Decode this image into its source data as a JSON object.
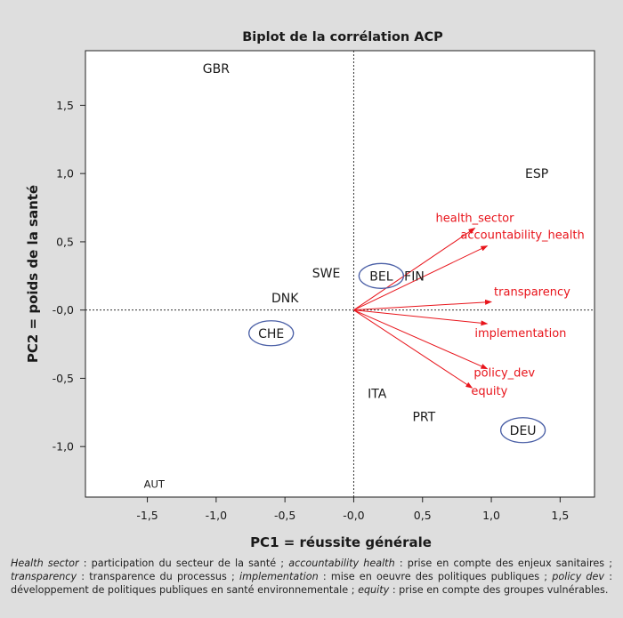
{
  "chart_data": {
    "type": "scatter",
    "title": "Biplot de la corrélation ACP",
    "xlabel": "PC1 = réussite générale",
    "ylabel": "PC2 = poids de la santé",
    "xlim": [
      -1.95,
      1.75
    ],
    "ylim": [
      -1.37,
      1.9
    ],
    "x_ticks": [
      -1.5,
      -1.0,
      -0.5,
      0.0,
      0.5,
      1.0,
      1.5
    ],
    "x_tick_labels": [
      "-1,5",
      "-1,0",
      "-0,5",
      "-0,0",
      "0,5",
      "1,0",
      "1,5"
    ],
    "y_ticks": [
      1.5,
      1.0,
      0.5,
      0.0,
      -0.5,
      -1.0
    ],
    "y_tick_labels": [
      "1,5",
      "1,0",
      "0,5",
      "-0,0",
      "-0,5",
      "-1,0"
    ],
    "reference_lines": {
      "x": 0.0,
      "y": 0.0,
      "style": "dotted"
    },
    "points": [
      {
        "label": "GBR",
        "x": -1.0,
        "y": 1.77,
        "circled": false
      },
      {
        "label": "ESP",
        "x": 1.33,
        "y": 1.0,
        "circled": false
      },
      {
        "label": "SWE",
        "x": -0.2,
        "y": 0.27,
        "circled": false
      },
      {
        "label": "BEL",
        "x": 0.2,
        "y": 0.25,
        "circled": true
      },
      {
        "label": "FIN",
        "x": 0.44,
        "y": 0.25,
        "circled": false
      },
      {
        "label": "DNK",
        "x": -0.5,
        "y": 0.09,
        "circled": false
      },
      {
        "label": "CHE",
        "x": -0.6,
        "y": -0.17,
        "circled": true
      },
      {
        "label": "ITA",
        "x": 0.17,
        "y": -0.61,
        "circled": false
      },
      {
        "label": "PRT",
        "x": 0.51,
        "y": -0.78,
        "circled": false
      },
      {
        "label": "DEU",
        "x": 1.23,
        "y": -0.88,
        "circled": true
      },
      {
        "label": "AUT",
        "x": -1.45,
        "y": -1.27,
        "circled": false
      }
    ],
    "loadings": [
      {
        "name": "health_sector",
        "x": 0.88,
        "y": 0.6
      },
      {
        "name": "accountability_health",
        "x": 0.97,
        "y": 0.47
      },
      {
        "name": "transparency",
        "x": 1.0,
        "y": 0.06
      },
      {
        "name": "implementation",
        "x": 0.97,
        "y": -0.1
      },
      {
        "name": "policy_dev",
        "x": 0.97,
        "y": -0.43
      },
      {
        "name": "equity",
        "x": 0.86,
        "y": -0.57
      }
    ],
    "grid": false,
    "legend": "none"
  },
  "caption": {
    "t1": "Health sector",
    "t2": " : participation du secteur de la santé ; ",
    "t3": "accountability health",
    "t4": " : prise en compte des enjeux sanitaires ; ",
    "t5": "transparency",
    "t6": " : transparence du processus ; ",
    "t7": "implementation",
    "t8": " : mise en oeuvre des politiques publiques ; ",
    "t9": "policy dev",
    "t10": " : développement de politiques publiques en santé environnementale ; ",
    "t11": "equity",
    "t12": " : prise en compte des groupes vulnérables."
  },
  "colors": {
    "arrow": "#e8141b",
    "circle": "#4a5fa6",
    "text": "#1a1a1a",
    "panel_bg": "#ffffff",
    "figure_bg": "#dedede"
  }
}
